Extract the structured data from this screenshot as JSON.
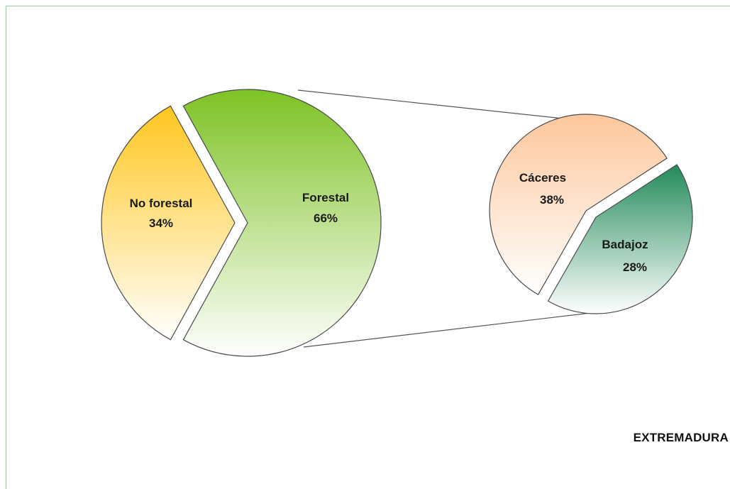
{
  "chart_data": {
    "type": "pie",
    "main": {
      "slices": [
        {
          "name": "No forestal",
          "value": 34,
          "value_label": "34%",
          "color_top": "#ffc61e",
          "color_bottom": "#ffffff"
        },
        {
          "name": "Forestal",
          "value": 66,
          "value_label": "66%",
          "color_top": "#7ec224",
          "color_bottom": "#ffffff",
          "exploded": true
        }
      ]
    },
    "breakdown": {
      "of": "Forestal",
      "slices": [
        {
          "name": "Cáceres",
          "value": 38,
          "value_label": "38%",
          "color_top": "#fdc79c",
          "color_bottom": "#ffffff"
        },
        {
          "name": "Badajoz",
          "value": 28,
          "value_label": "28%",
          "color_top": "#238a5b",
          "color_bottom": "#ffffff"
        }
      ]
    },
    "annotation": "EXTREMADURA"
  }
}
